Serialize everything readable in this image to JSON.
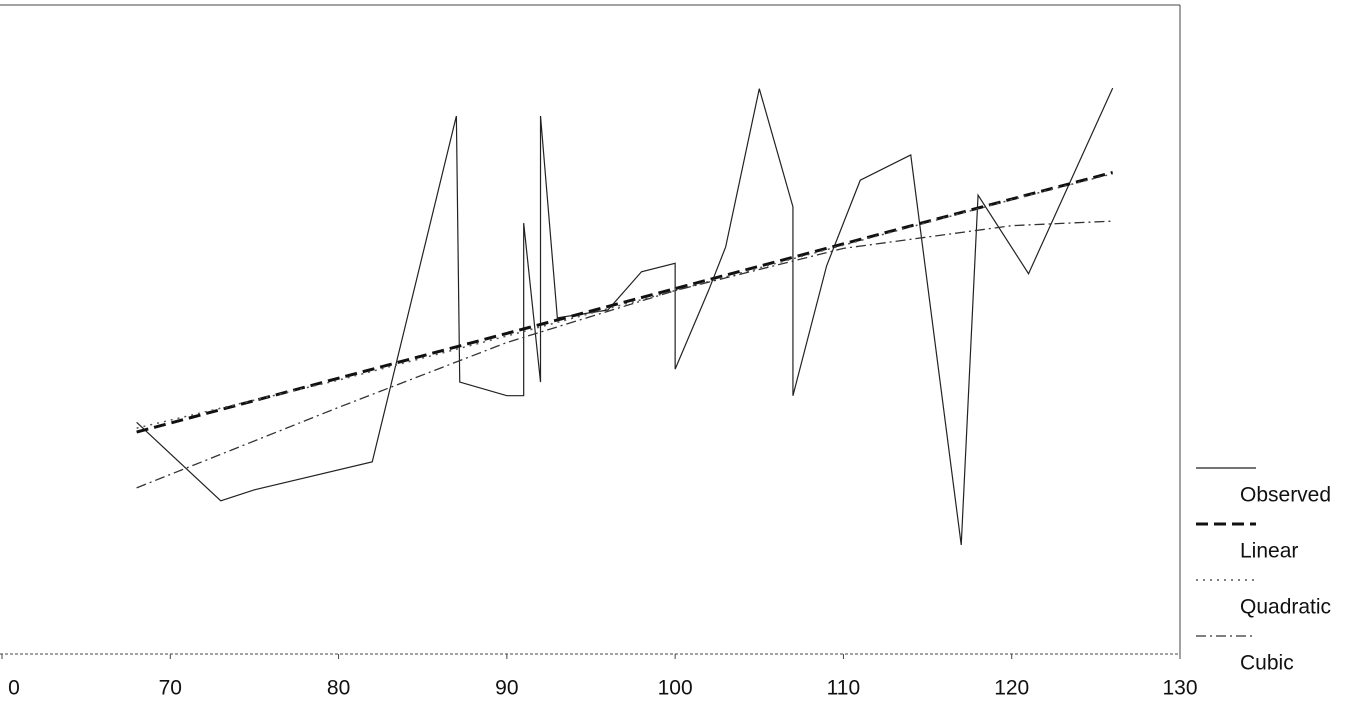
{
  "chart_data": {
    "type": "line",
    "xlim": [
      60,
      130
    ],
    "ylim": [
      0,
      100
    ],
    "xticks": [
      {
        "value": 60,
        "label": "0"
      },
      70,
      80,
      90,
      100,
      110,
      120,
      130
    ],
    "series": [
      {
        "name": "Observed",
        "color": "#222222",
        "style": "solid",
        "x": [
          68,
          73,
          75,
          82,
          87,
          87.2,
          90,
          91,
          91,
          92,
          92,
          93,
          96,
          98,
          100,
          100,
          102,
          103,
          105,
          107,
          107,
          109,
          111,
          114,
          117,
          118,
          121,
          126
        ],
        "values": [
          35.7,
          23.6,
          25.3,
          29.6,
          82.9,
          41.9,
          39.8,
          39.8,
          66.4,
          41.9,
          82.9,
          51.8,
          53.0,
          58.9,
          60.2,
          43.9,
          56.1,
          62.7,
          87.1,
          68.9,
          39.8,
          59.8,
          73.0,
          76.9,
          16.8,
          70.7,
          58.6,
          87.2
        ]
      },
      {
        "name": "Linear",
        "color": "#111111",
        "style": "dashed",
        "x": [
          68,
          80,
          90,
          100,
          110,
          120,
          126
        ],
        "values": [
          34.2,
          42.5,
          49.4,
          56.3,
          63.2,
          70.1,
          74.2
        ]
      },
      {
        "name": "Quadratic",
        "color": "#555555",
        "style": "dotted",
        "x": [
          68,
          80,
          90,
          100,
          110,
          120,
          126
        ],
        "values": [
          34.8,
          42.2,
          49.0,
          56.0,
          63.0,
          70.0,
          74.0
        ]
      },
      {
        "name": "Cubic",
        "color": "#333333",
        "style": "dashdot",
        "x": [
          68,
          80,
          90,
          100,
          110,
          120,
          126
        ],
        "values": [
          25.6,
          38.0,
          48.0,
          56.0,
          62.5,
          66.0,
          66.7
        ]
      }
    ]
  }
}
